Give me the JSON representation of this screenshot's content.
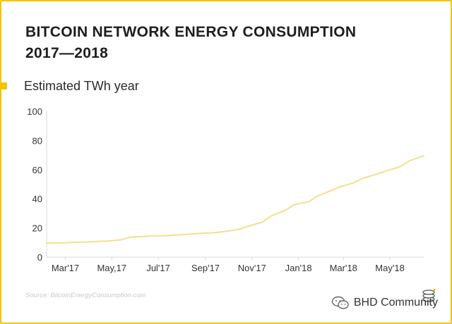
{
  "title_line1": "BITCOIN NETWORK ENERGY CONSUMPTION",
  "title_line2": "2017—2018",
  "source": "Source: BitcoinEnergyConsumption.com",
  "watermark": "BHD Community",
  "colors": {
    "accent": "#f5c400",
    "line": "#f3df8f",
    "grid": "#d8d8d8"
  },
  "icons": {
    "watermark": "wechat-chat-icon",
    "badge": "coin-stack-icon"
  },
  "chart_data": {
    "type": "line",
    "title": "BITCOIN NETWORK ENERGY CONSUMPTION 2017—2018",
    "ylabel": "",
    "xlabel": "",
    "ylim": [
      0,
      100
    ],
    "yticks": [
      0,
      20,
      40,
      60,
      80,
      100
    ],
    "xticks": [
      "Mar'17",
      "May,17",
      "Jul'17",
      "Sep'17",
      "Nov'17",
      "Jan'18",
      "Mar'18",
      "May'18"
    ],
    "grid": false,
    "legend": "top-left",
    "series": [
      {
        "name": "Estimated TWh year",
        "x": [
          "2017-02-10",
          "2017-03-01",
          "2017-03-20",
          "2017-04-01",
          "2017-04-20",
          "2017-05-01",
          "2017-05-20",
          "2017-06-01",
          "2017-06-20",
          "2017-07-01",
          "2017-07-20",
          "2017-08-01",
          "2017-08-20",
          "2017-09-01",
          "2017-09-20",
          "2017-10-01",
          "2017-10-20",
          "2017-11-01",
          "2017-11-20",
          "2017-12-01",
          "2017-12-20",
          "2018-01-01",
          "2018-01-20",
          "2018-02-01",
          "2018-02-20",
          "2018-03-01",
          "2018-03-20",
          "2018-04-01",
          "2018-04-20",
          "2018-05-01",
          "2018-05-20",
          "2018-06-01",
          "2018-06-20"
        ],
        "y": [
          9.5,
          9.7,
          10.2,
          10.3,
          10.8,
          11.0,
          12.0,
          13.8,
          14.2,
          14.5,
          14.8,
          15.2,
          15.8,
          16.3,
          16.8,
          17.5,
          19.0,
          21.0,
          24.0,
          28.0,
          32.0,
          36.0,
          38.0,
          42.0,
          46.0,
          48.0,
          51.0,
          54.0,
          57.0,
          59.0,
          62.0,
          66.0,
          69.5
        ]
      }
    ]
  }
}
